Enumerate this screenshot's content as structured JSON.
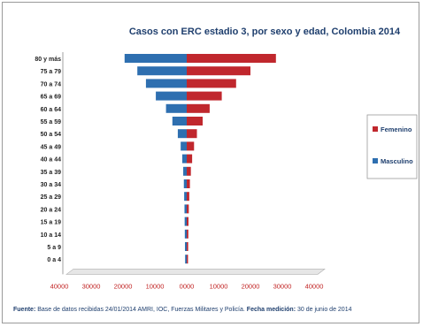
{
  "chart_data": {
    "type": "bar",
    "title": "Casos con ERC estadio 3, por sexo y edad, Colombia 2014",
    "categories": [
      "0 a 4",
      "5 a 9",
      "10 a 14",
      "15 a 19",
      "20 a 24",
      "25 a 29",
      "30 a 34",
      "35 a 39",
      "40 a 44",
      "45 a 49",
      "50 a 54",
      "55 a 59",
      "60 a 64",
      "65 a 69",
      "70 a 74",
      "75 a 79",
      "80 y más"
    ],
    "series": [
      {
        "name": "Femenino",
        "color": "#c0272d",
        "values": [
          400,
          450,
          500,
          550,
          650,
          800,
          1000,
          1300,
          1700,
          2300,
          3200,
          5000,
          7200,
          11000,
          15500,
          20000,
          28000
        ]
      },
      {
        "name": "Masculino",
        "color": "#2e6fb0",
        "values": [
          -500,
          -550,
          -600,
          -650,
          -700,
          -800,
          -900,
          -1100,
          -1400,
          -1900,
          -2800,
          -4500,
          -6500,
          -9700,
          -12800,
          -15500,
          -19500
        ]
      }
    ],
    "xlim": [
      -40000,
      40000
    ],
    "x_tick_labels": [
      "40000",
      "30000",
      "20000",
      "10000",
      "0000",
      "10000",
      "20000",
      "30000",
      "40000"
    ],
    "legend": [
      "Femenino",
      "Masculino"
    ],
    "legend_position": "right",
    "grid": false
  },
  "source": {
    "label": "Fuente:",
    "text": "Base de datos recibidas 24/01/2014 AMRI, IOC, Fuerzas Militares y Policía.",
    "date_label": "Fecha medición:",
    "date_text": "30 de junio de 2014"
  }
}
